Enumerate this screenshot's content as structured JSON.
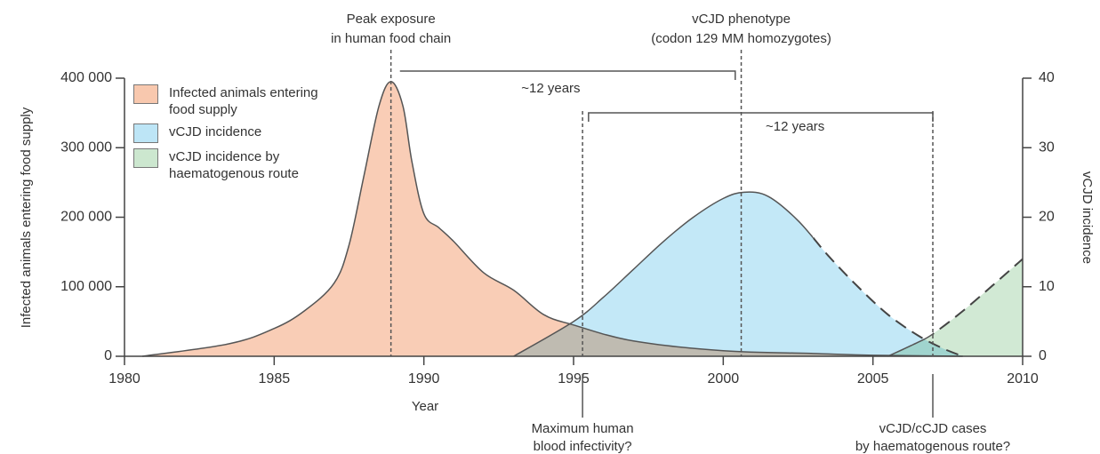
{
  "chart_data": {
    "type": "area",
    "xlabel": "Year",
    "ylabel": "Infected animals entering food supply",
    "y2label": "vCJD incidence",
    "xlim": [
      1980,
      2010
    ],
    "xticks": [
      1980,
      1985,
      1990,
      1995,
      2000,
      2005,
      2010
    ],
    "ylim": [
      0,
      400000
    ],
    "yticks": [
      0,
      {
        "value": 100000,
        "label": "100 000"
      },
      {
        "value": 200000,
        "label": "200 000"
      },
      {
        "value": 300000,
        "label": "300 000"
      },
      {
        "value": 400000,
        "label": "400 000"
      }
    ],
    "y2lim": [
      0,
      40
    ],
    "y2ticks": [
      0,
      10,
      20,
      30,
      40
    ],
    "series": [
      {
        "name": "Infected animals entering food supply",
        "color": "#f8c8ae",
        "x": [
          1980.6,
          1983.5,
          1985,
          1986,
          1987,
          1987.5,
          1988,
          1988.5,
          1988.9,
          1989.3,
          1989.6,
          1990,
          1990.5,
          1991,
          1992,
          1993,
          1994,
          1995,
          1997,
          2000,
          2003,
          2005,
          2008
        ],
        "values": [
          0,
          18000,
          40000,
          65000,
          105000,
          160000,
          260000,
          360000,
          395000,
          360000,
          280000,
          205000,
          185000,
          165000,
          120000,
          95000,
          60000,
          45000,
          22000,
          8000,
          4000,
          1500,
          0
        ]
      },
      {
        "name": "vCJD incidence",
        "color": "#bde5f6",
        "axis": "y2",
        "dash_from": 2003,
        "x": [
          1993,
          1995,
          1996,
          1997,
          1998,
          1999,
          2000,
          2000.7,
          2001.5,
          2002.5,
          2003.5,
          2004.5,
          2005.5,
          2006.5,
          2007.3,
          2008
        ],
        "values": [
          0,
          5,
          8.5,
          12.5,
          16.5,
          20,
          22.7,
          23.6,
          23,
          19.5,
          14.5,
          10,
          6,
          3,
          1.2,
          0
        ]
      },
      {
        "name": "vCJD incidence by haematogenous route",
        "color": "#cce7cf",
        "axis": "y2",
        "dash_from": 2007,
        "x": [
          2005.5,
          2006.5,
          2007,
          2008,
          2009,
          2010
        ],
        "values": [
          0,
          2,
          3.2,
          6.5,
          10.2,
          14
        ]
      }
    ],
    "annotations": [
      {
        "x": 1988.9,
        "position": "top",
        "lines": [
          "Peak exposure",
          "in human food chain"
        ]
      },
      {
        "x": 2000.6,
        "position": "top",
        "lines": [
          "vCJD phenotype",
          "(codon 129 MM homozygotes)"
        ]
      },
      {
        "x": 1995.3,
        "position": "bottom",
        "lines": [
          "Maximum human",
          "blood infectivity?"
        ]
      },
      {
        "x": 2007,
        "position": "bottom",
        "lines": [
          "vCJD/cCJD cases",
          "by haematogenous route?"
        ]
      }
    ],
    "brackets": [
      {
        "label": "~12 years",
        "from": 1989.2,
        "to": 2000.4
      },
      {
        "label": "~12 years",
        "from": 1995.5,
        "to": 2007
      }
    ]
  }
}
